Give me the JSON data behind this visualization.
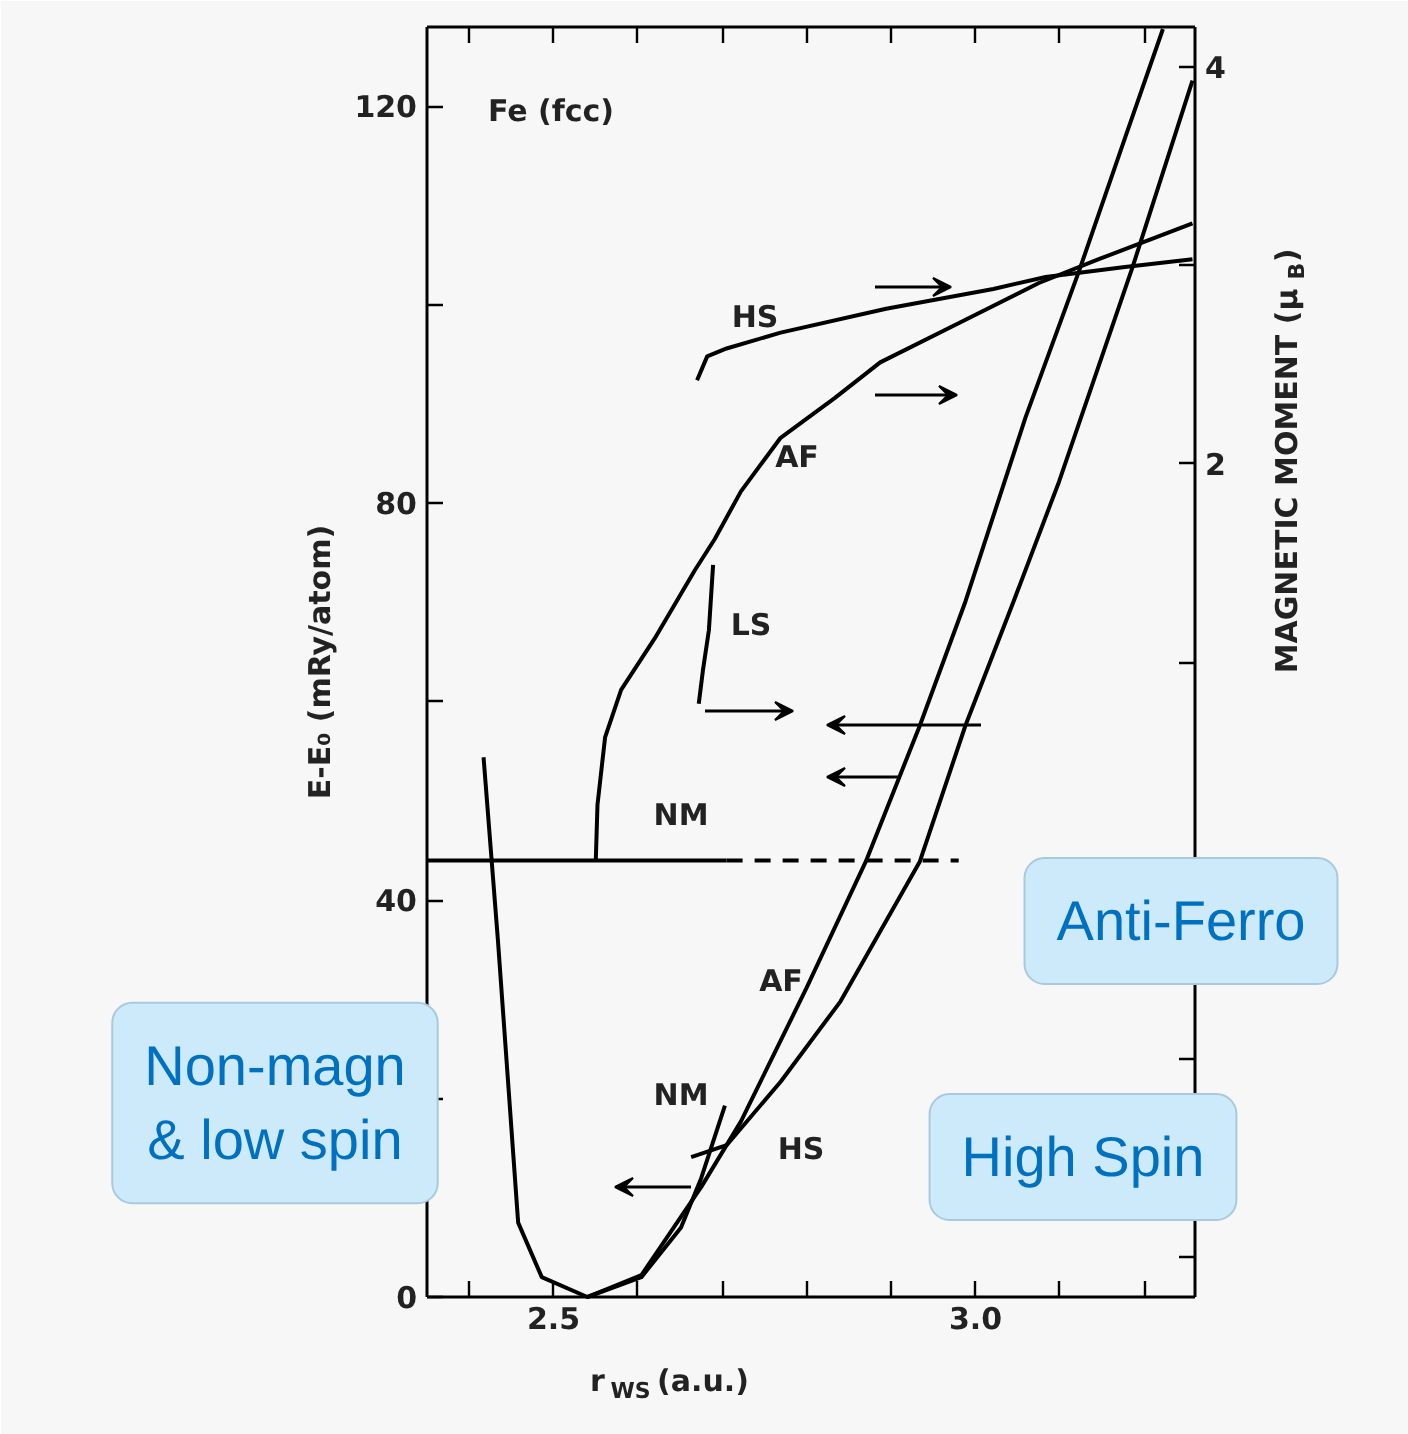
{
  "chart_data": {
    "type": "line",
    "xlabel": "r$_{WS}$ (a.u.)",
    "ylabel": "E-E₀ (mRy/atom)",
    "y2label": "MAGNETIC MOMENT (μ$_{B}$)",
    "annotations": [
      "Fe (fcc)",
      "Non-magn\n& low spin",
      "Anti-Ferro",
      "High Spin"
    ],
    "xlim": [
      2.35,
      3.26
    ],
    "xticks": [
      {
        "value": 2.4,
        "label": null
      },
      2.5,
      {
        "value": 2.6,
        "label": null
      },
      {
        "value": 2.7,
        "label": null
      },
      {
        "value": 2.8,
        "label": null
      },
      {
        "value": 2.9,
        "label": null
      },
      {
        "value": 3.0,
        "label": "3.0"
      },
      {
        "value": 3.1,
        "label": null
      },
      {
        "value": 3.2,
        "label": null
      }
    ],
    "ylim": [
      0,
      128
    ],
    "yticks": [
      0,
      {
        "value": 20,
        "label": null
      },
      40,
      {
        "value": 60,
        "label": null
      },
      80,
      {
        "value": 100,
        "label": null
      },
      120
    ],
    "y2lim": [
      -2.2,
      4.2
    ],
    "y2ticks": [
      {
        "value": -2,
        "label": null
      },
      {
        "value": -1,
        "label": null
      },
      {
        "value": 0,
        "label": null
      },
      {
        "value": 1,
        "label": null
      },
      2,
      {
        "value": 3,
        "label": null
      },
      4
    ],
    "marker": "none",
    "line_style": "solid",
    "series": [
      {
        "name": "NM",
        "color": "#000000",
        "x": [
          2.417,
          2.434,
          2.458,
          2.486,
          2.54,
          2.604,
          2.651,
          2.675,
          2.703
        ],
        "values": [
          54.4,
          36,
          7.5,
          2.0,
          0,
          2.0,
          7,
          12,
          19.3
        ]
      },
      {
        "name": "AF",
        "color": "#000000",
        "x": [
          2.54,
          2.604,
          2.675,
          2.722,
          2.8,
          2.87,
          2.934,
          2.988,
          3.059,
          3.123,
          3.177,
          3.222
        ],
        "values": [
          0,
          2.2,
          11.1,
          17.7,
          31.2,
          43.9,
          57.6,
          70.1,
          88.6,
          103.5,
          116.8,
          127.8
        ]
      },
      {
        "name": "HS",
        "color": "#000000",
        "x": [
          2.663,
          2.705,
          2.769,
          2.84,
          2.934,
          2.988,
          3.045,
          3.099,
          3.186,
          3.257
        ],
        "values": [
          14.1,
          15.3,
          21.7,
          29.8,
          43.9,
          57.6,
          70.1,
          82.2,
          103.8,
          122.6
        ]
      },
      {
        "name": "NM",
        "color": "#000000",
        "axis": "y2",
        "x": [
          2.35,
          2.705
        ],
        "values": [
          0,
          0
        ]
      },
      {
        "color": "#000000",
        "axis": "y2",
        "line_style": "dashed",
        "x": [
          2.705,
          2.98
        ],
        "values": [
          0,
          0
        ]
      },
      {
        "name": "AF",
        "color": "#000000",
        "axis": "y2",
        "x": [
          2.55,
          2.552,
          2.561,
          2.58,
          2.62,
          2.667,
          2.691,
          2.722,
          2.769,
          2.833,
          2.887,
          2.981,
          3.075,
          3.146,
          3.257
        ],
        "values": [
          0,
          0.28,
          0.62,
          0.86,
          1.12,
          1.46,
          1.62,
          1.86,
          2.13,
          2.33,
          2.51,
          2.71,
          2.91,
          3.03,
          3.21
        ]
      },
      {
        "name": "HS",
        "color": "#000000",
        "axis": "y2",
        "x": [
          2.67,
          2.682,
          2.705,
          2.769,
          2.894,
          3.021,
          3.083,
          3.177,
          3.257
        ],
        "values": [
          2.42,
          2.54,
          2.58,
          2.66,
          2.78,
          2.88,
          2.94,
          2.99,
          3.03
        ]
      },
      {
        "name": "LS",
        "color": "#000000",
        "axis": "y2",
        "x": [
          2.689,
          2.684,
          2.677,
          2.672
        ],
        "values": [
          1.49,
          1.16,
          0.96,
          0.79
        ]
      }
    ]
  }
}
